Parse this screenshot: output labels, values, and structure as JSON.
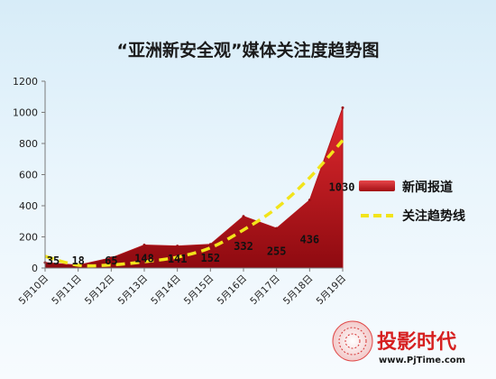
{
  "chart_data": {
    "type": "area",
    "title": "“亚洲新安全观”媒体关注度趋势图",
    "categories": [
      "5月10日",
      "5月11日",
      "5月12日",
      "5月13日",
      "5月14日",
      "5月15日",
      "5月16日",
      "5月17日",
      "5月18日",
      "5月19日"
    ],
    "series": [
      {
        "name": "新闻报道",
        "kind": "area",
        "color": "#c8161d",
        "values": [
          35,
          18,
          65,
          148,
          141,
          152,
          332,
          255,
          436,
          1030
        ]
      },
      {
        "name": "关注趋势线",
        "kind": "trendline",
        "style": "dashed",
        "color": "#f2e41a",
        "values": [
          75,
          18,
          20,
          40,
          70,
          130,
          245,
          385,
          580,
          820
        ]
      }
    ],
    "data_labels": [
      "35",
      "18",
      "65",
      "148",
      "141",
      "152",
      "332",
      "255",
      "436",
      "1030"
    ],
    "ylim": [
      0,
      1200
    ],
    "yticks": [
      "0",
      "200",
      "400",
      "600",
      "800",
      "1000",
      "1200"
    ],
    "xlabel": "",
    "ylabel": "",
    "grid": false,
    "legend_position": "right"
  },
  "watermark": {
    "brand": "投影时代",
    "url": "www.PjTime.com"
  }
}
